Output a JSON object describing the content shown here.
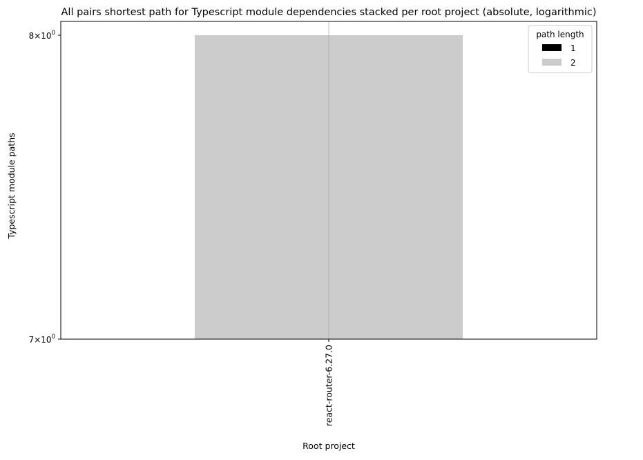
{
  "chart_data": {
    "type": "bar",
    "stacked": true,
    "title": "All pairs shortest path for Typescript module dependencies stacked per root project (absolute, logarithmic)",
    "xlabel": "Root project",
    "ylabel": "Typescript module paths",
    "categories": [
      "react-router-6.27.0"
    ],
    "series": [
      {
        "name": "1",
        "values": [
          0
        ],
        "color": "#000000"
      },
      {
        "name": "2",
        "values": [
          8
        ],
        "color": "#cccccc"
      }
    ],
    "y_scale": "log",
    "ylim": [
      7,
      8
    ],
    "y_ticks": [
      {
        "value": 7,
        "base": "7",
        "exponent": "0"
      },
      {
        "value": 8,
        "base": "8",
        "exponent": "0"
      }
    ],
    "grid": "vertical",
    "legend": {
      "title": "path length",
      "placement": "top-right"
    }
  }
}
